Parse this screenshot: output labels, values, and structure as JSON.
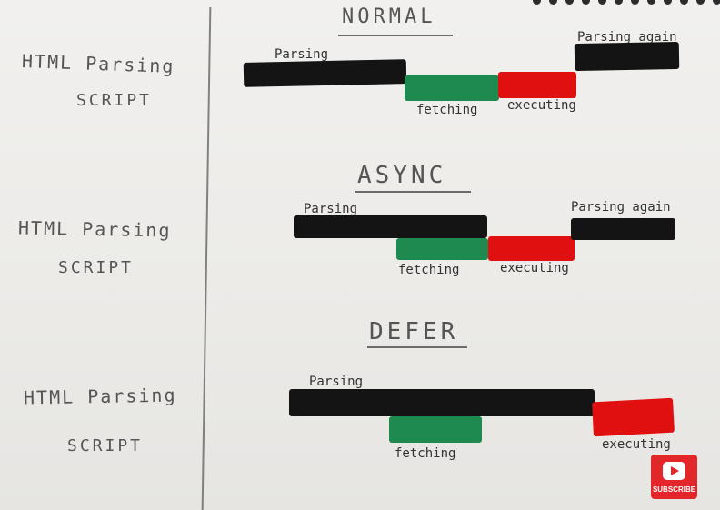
{
  "row_labels": {
    "html_parsing": "HTML Parsing",
    "script": "SCRIPT"
  },
  "sections": [
    {
      "title": "NORMAL",
      "labels": {
        "parsing": "Parsing",
        "parsing_again": "Parsing again",
        "fetching": "fetching",
        "executing": "executing"
      }
    },
    {
      "title": "ASYNC",
      "labels": {
        "parsing": "Parsing",
        "parsing_again": "Parsing again",
        "fetching": "fetching",
        "executing": "executing"
      }
    },
    {
      "title": "DEFER",
      "labels": {
        "parsing": "Parsing",
        "fetching": "fetching",
        "executing": "executing"
      }
    }
  ],
  "badge": {
    "text": "SUBSCRIBE",
    "icon": "youtube-play-icon",
    "color": "#e3262a"
  },
  "colors": {
    "parsing": "#141414",
    "fetching": "#1f8a50",
    "executing": "#e01010"
  }
}
